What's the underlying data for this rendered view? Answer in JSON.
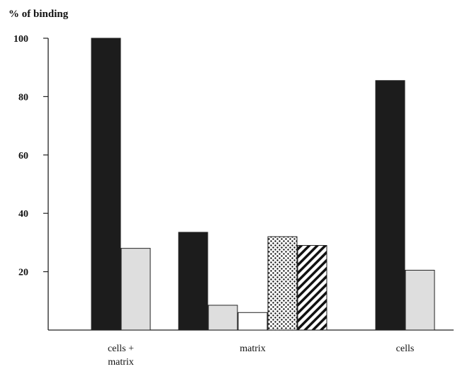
{
  "chart_data": {
    "type": "bar",
    "title": "",
    "ylabel": "% of binding",
    "xlabel": "",
    "ylim": [
      0,
      100
    ],
    "yticks": [
      20,
      40,
      60,
      80,
      100
    ],
    "grid": false,
    "categories": [
      {
        "label_lines": [
          "cells +",
          "matrix"
        ],
        "bars": [
          {
            "value": 100,
            "pattern": "black"
          },
          {
            "value": 28,
            "pattern": "light-gray"
          }
        ]
      },
      {
        "label_lines": [
          "matrix"
        ],
        "bars": [
          {
            "value": 33.5,
            "pattern": "black"
          },
          {
            "value": 8.5,
            "pattern": "light-gray"
          },
          {
            "value": 6,
            "pattern": "white"
          },
          {
            "value": 32,
            "pattern": "dotted"
          },
          {
            "value": 29,
            "pattern": "hatched"
          }
        ]
      },
      {
        "label_lines": [
          "cells"
        ],
        "bars": [
          {
            "value": 85.5,
            "pattern": "black"
          },
          {
            "value": 20.5,
            "pattern": "light-gray"
          }
        ]
      }
    ],
    "colors": {
      "black": "#1c1c1c",
      "light-gray": "#dedede",
      "white": "#ffffff",
      "axis": "#222222"
    }
  }
}
